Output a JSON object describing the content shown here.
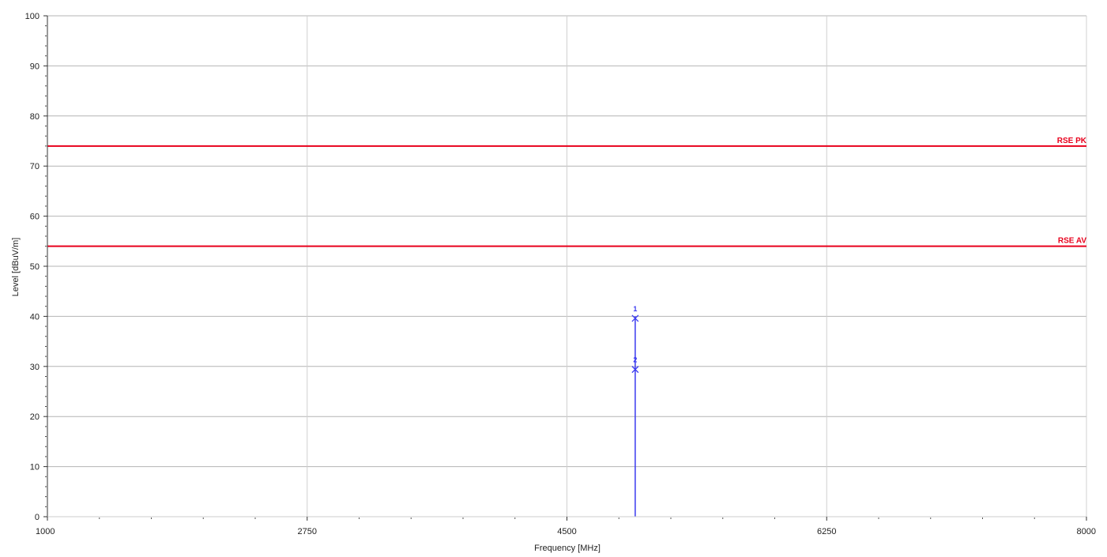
{
  "chart_data": {
    "type": "line",
    "title": "",
    "xlabel": "Frequency [MHz]",
    "ylabel": "Level [dBuV/m]",
    "xlim": [
      1000,
      8000
    ],
    "ylim": [
      0,
      100
    ],
    "x_ticks": [
      1000,
      2750,
      4500,
      6250,
      8000
    ],
    "x_tick_labels": [
      "1000",
      "2750",
      "4500",
      "6250",
      "8000"
    ],
    "y_ticks": [
      0,
      10,
      20,
      30,
      40,
      50,
      60,
      70,
      80,
      90,
      100
    ],
    "y_tick_labels": [
      "0",
      "10",
      "20",
      "30",
      "40",
      "50",
      "60",
      "70",
      "80",
      "90",
      "100"
    ],
    "grid": true,
    "limit_lines": [
      {
        "name": "RSE PK",
        "value": 74,
        "color": "#e8001c"
      },
      {
        "name": "RSE AV",
        "value": 54,
        "color": "#e8001c"
      }
    ],
    "series": [
      {
        "type": "spike",
        "color": "#3a3af0",
        "x": [
          4960,
          4960
        ],
        "y": [
          0,
          40
        ]
      }
    ],
    "markers": [
      {
        "label": "1",
        "x": 4960,
        "y": 39.6,
        "color": "#3a3af0"
      },
      {
        "label": "2",
        "x": 4960,
        "y": 29.4,
        "color": "#3a3af0"
      }
    ]
  }
}
